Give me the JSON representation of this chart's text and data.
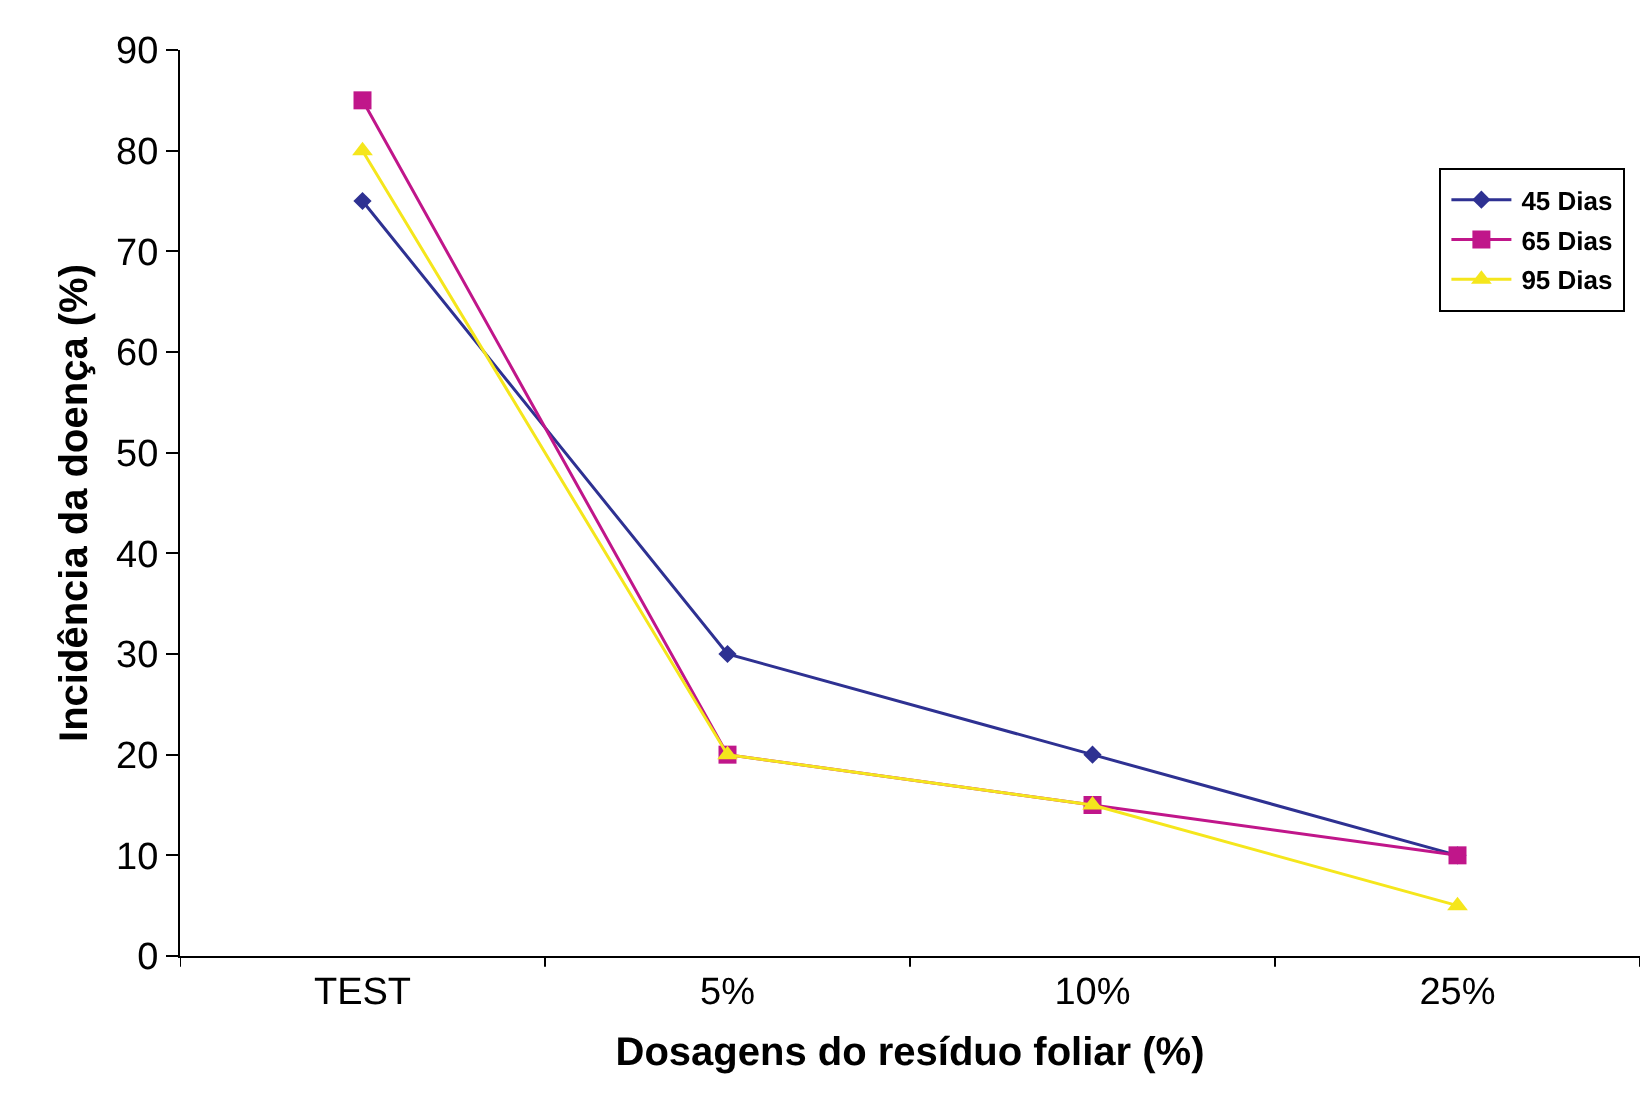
{
  "chart_data": {
    "type": "line",
    "xlabel": "Dosagens do resíduo foliar (%)",
    "ylabel": "Incidência da doença (%)",
    "categories": [
      "TEST",
      "5%",
      "10%",
      "25%"
    ],
    "series": [
      {
        "name": "45 Dias",
        "color": "#2e3192",
        "marker": "diamond",
        "values": [
          75,
          30,
          20,
          10
        ]
      },
      {
        "name": "65 Dias",
        "color": "#c0168a",
        "marker": "square",
        "values": [
          85,
          20,
          15,
          10
        ]
      },
      {
        "name": "95 Dias",
        "color": "#f5e61c",
        "marker": "triangle",
        "values": [
          80,
          20,
          15,
          5
        ]
      }
    ],
    "ylim": [
      0,
      90
    ],
    "yticks": [
      0,
      10,
      20,
      30,
      40,
      50,
      60,
      70,
      80,
      90
    ],
    "grid": false,
    "legend": "top right",
    "line_style": "solid"
  }
}
